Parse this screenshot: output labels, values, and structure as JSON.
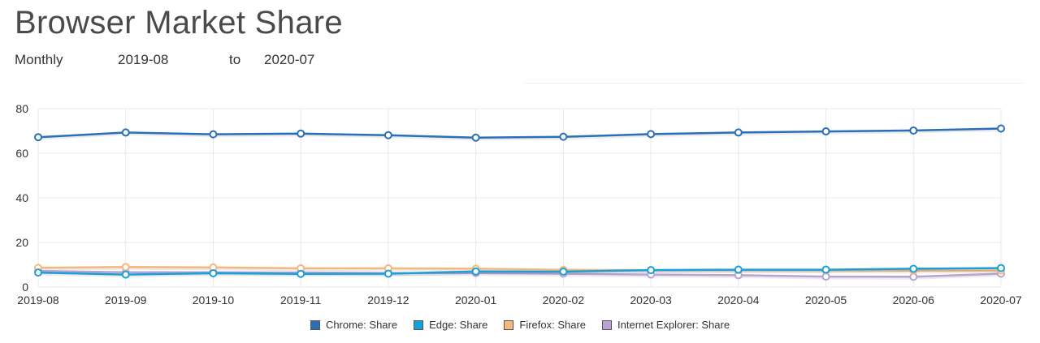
{
  "header": {
    "title": "Browser Market Share",
    "period": "Monthly",
    "from": "2019-08",
    "to_label": "to",
    "to": "2020-07"
  },
  "colors": {
    "chrome": "#2a6fb8",
    "edge": "#1aa0d8",
    "firefox": "#f5b77c",
    "ie": "#b7a4d2",
    "grid": "#e8e8e8"
  },
  "chart_data": {
    "type": "line",
    "title": "Browser Market Share",
    "xlabel": "",
    "ylabel": "",
    "ylim": [
      0,
      80
    ],
    "yticks": [
      0,
      20,
      40,
      60,
      80
    ],
    "grid": true,
    "legend_position": "bottom-center",
    "categories": [
      "2019-08",
      "2019-09",
      "2019-10",
      "2019-11",
      "2019-12",
      "2020-01",
      "2020-02",
      "2020-03",
      "2020-04",
      "2020-05",
      "2020-06",
      "2020-07"
    ],
    "series": [
      {
        "key": "ie",
        "name": "Internet Explorer: Share",
        "values": [
          7.2,
          6.6,
          6.6,
          6.5,
          6.3,
          6.3,
          6.0,
          5.6,
          5.3,
          4.7,
          4.6,
          6.0
        ]
      },
      {
        "key": "firefox",
        "name": "Firefox: Share",
        "values": [
          8.6,
          9.0,
          8.8,
          8.4,
          8.4,
          8.2,
          7.7,
          7.6,
          7.6,
          7.5,
          7.4,
          7.4
        ]
      },
      {
        "key": "edge",
        "name": "Edge: Share",
        "values": [
          6.5,
          5.6,
          6.2,
          5.9,
          6.0,
          7.0,
          6.9,
          7.6,
          7.8,
          7.8,
          8.2,
          8.5
        ]
      },
      {
        "key": "chrome",
        "name": "Chrome: Share",
        "values": [
          67.2,
          69.3,
          68.5,
          68.8,
          68.1,
          67.0,
          67.4,
          68.6,
          69.3,
          69.8,
          70.2,
          71.1
        ]
      }
    ],
    "legend": [
      {
        "key": "chrome",
        "label": "Chrome: Share"
      },
      {
        "key": "edge",
        "label": "Edge: Share"
      },
      {
        "key": "firefox",
        "label": "Firefox: Share"
      },
      {
        "key": "ie",
        "label": "Internet Explorer: Share"
      }
    ]
  }
}
